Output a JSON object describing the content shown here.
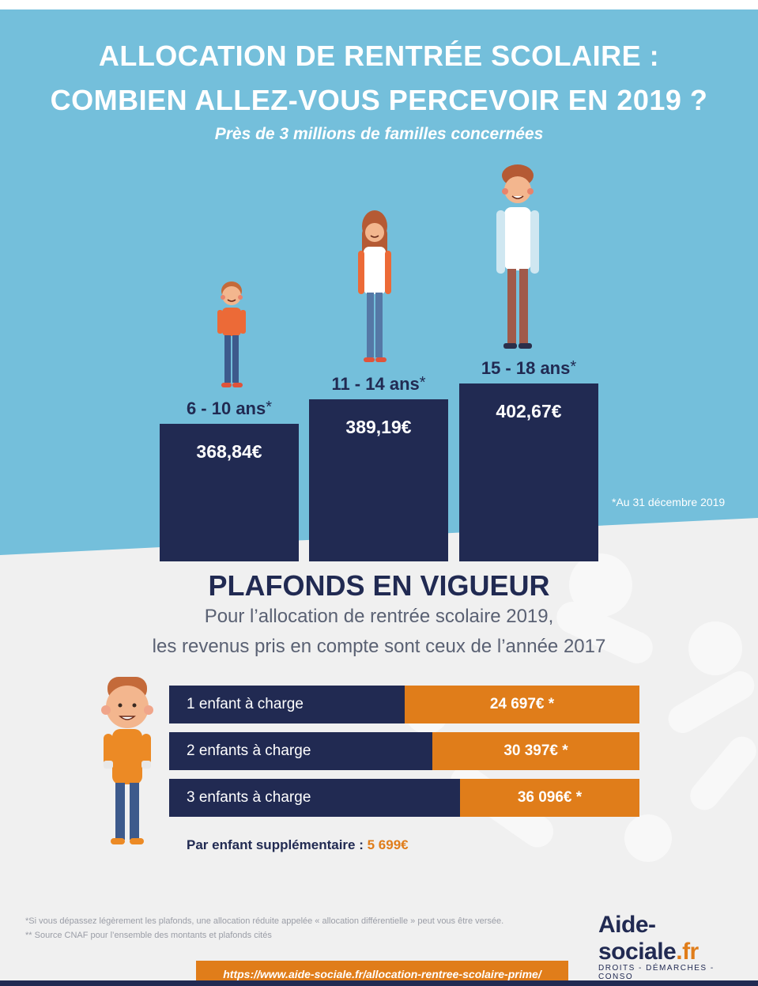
{
  "header": {
    "title_line1": "ALLOCATION DE RENTRÉE SCOLAIRE :",
    "title_line2": "COMBIEN ALLEZ-VOUS PERCEVOIR EN 2019 ?",
    "subtitle": "Près de 3 millions de familles concernées"
  },
  "chart_data": {
    "type": "bar",
    "categories": [
      "6 - 10 ans",
      "11 - 14 ans",
      "15 - 18 ans"
    ],
    "values": [
      368.84,
      389.19,
      402.67
    ],
    "value_labels": [
      "368,84€",
      "389,19€",
      "402,67€"
    ],
    "category_marker": "*"
  },
  "date_note": "*Au 31 décembre 2019",
  "plafonds": {
    "title": "PLAFONDS EN VIGUEUR",
    "sub_line1": "Pour l’allocation de rentrée scolaire 2019,",
    "sub_line2": "les revenus pris en compte sont ceux de l’année 2017",
    "rows": [
      {
        "label": "1 enfant à charge",
        "amount": "24 697€ *",
        "value": 24697
      },
      {
        "label": "2 enfants à charge",
        "amount": "30 397€ *",
        "value": 30397
      },
      {
        "label": "3 enfants à charge",
        "amount": "36 096€ *",
        "value": 36096
      }
    ],
    "extra_label": "Par enfant supplémentaire :",
    "extra_amount": "5 699€"
  },
  "footnotes": {
    "note1": "*Si vous dépassez légèrement les plafonds, une allocation réduite appelée « allocation différentielle » peut vous être versée.",
    "note2": "** Source CNAF pour l’ensemble des montants et plafonds cités"
  },
  "logo": {
    "name": "Aide-sociale",
    "ext": ".fr",
    "tagline": "DROITS - DÉMARCHES - CONSO"
  },
  "url": "https://www.aide-sociale.fr/allocation-rentree-scolaire-prime/",
  "colors": {
    "sky": "#74bfdb",
    "navy": "#212a52",
    "orange": "#e07d1a",
    "light_gray": "#f0f0f0"
  }
}
